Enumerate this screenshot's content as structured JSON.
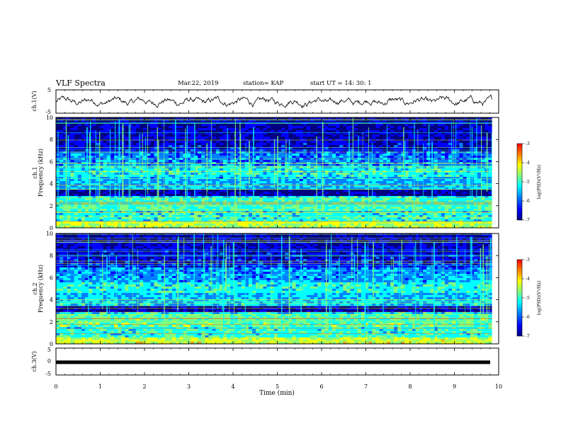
{
  "header": {
    "title": "VLF Spectra",
    "date": "Mar.22, 2019",
    "station": "station= KAP",
    "start": "start UT =   14: 30: 1"
  },
  "chart_data": [
    {
      "type": "line",
      "name": "ch1-waveform",
      "ylabel": "ch.1(V)",
      "ylim": [
        -5,
        5
      ],
      "yticks": [
        "5",
        "-5"
      ],
      "xlim": [
        0,
        10
      ],
      "note": "noisy waveform roughly between -2 and 2 V over 0–9.85 min"
    },
    {
      "type": "heatmap",
      "name": "ch1-spectrogram",
      "ylabel": "ch.1 Frequency (kHz)",
      "ylim": [
        0,
        10
      ],
      "yticks": [
        "0",
        "2",
        "4",
        "6",
        "8",
        "10"
      ],
      "xlim": [
        0,
        9.85
      ],
      "colorbar": {
        "label": "log(PSD)(V²/Hz)",
        "range": [
          -7,
          -3
        ],
        "ticks": [
          "-3",
          "-4",
          "-5",
          "-6",
          "-7"
        ]
      }
    },
    {
      "type": "heatmap",
      "name": "ch2-spectrogram",
      "ylabel": "ch.2 Frequency (kHz)",
      "ylim": [
        0,
        10
      ],
      "yticks": [
        "0",
        "2",
        "4",
        "6",
        "8",
        "10"
      ],
      "xlim": [
        0,
        9.85
      ],
      "colorbar": {
        "label": "log(PSD)(V²/Hz)",
        "range": [
          -7,
          -3
        ],
        "ticks": [
          "-3",
          "-4",
          "-5",
          "-6",
          "-7"
        ]
      }
    },
    {
      "type": "line",
      "name": "ch3-waveform",
      "ylabel": "ch.3(V)",
      "ylim": [
        -5,
        5
      ],
      "yticks": [
        "5",
        "0",
        "-5"
      ],
      "xlim": [
        0,
        10
      ],
      "note": "thick flat line near -1 V"
    }
  ],
  "xaxis": {
    "label": "Time (min)",
    "ticks": [
      "0",
      "1",
      "2",
      "3",
      "4",
      "5",
      "6",
      "7",
      "8",
      "9",
      "10"
    ]
  },
  "colors": {
    "colormap": [
      "#000080",
      "#0000ff",
      "#0080ff",
      "#00ffff",
      "#80ff80",
      "#ffff00",
      "#ff8000",
      "#ff0000"
    ]
  }
}
